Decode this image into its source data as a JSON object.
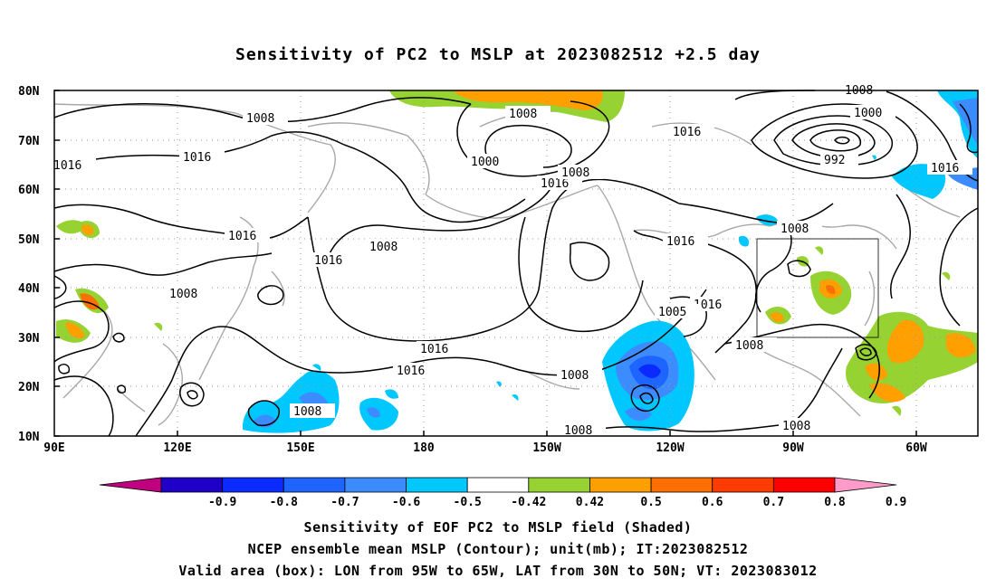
{
  "title": "Sensitivity of PC2 to MSLP at 2023082512 +2.5 day",
  "lat_labels": [
    "80N",
    "70N",
    "60N",
    "50N",
    "40N",
    "30N",
    "20N",
    "10N"
  ],
  "lon_labels": [
    "90E",
    "120E",
    "150E",
    "180",
    "150W",
    "120W",
    "90W",
    "60W"
  ],
  "contour_labels": [
    "1008",
    "1016",
    "1000",
    "992",
    "1008",
    "1016",
    "1016",
    "1000",
    "1008",
    "1016",
    "1016",
    "1016",
    "1008",
    "1008",
    "1016",
    "1016",
    "1016",
    "1005",
    "1016",
    "1008",
    "1016",
    "1008",
    "1008",
    "1008"
  ],
  "colorbar": {
    "colors": [
      "#c0007f",
      "#1e00c8",
      "#0a2aff",
      "#1e64ff",
      "#3c8cff",
      "#00c8ff",
      "#ffffff",
      "#96d232",
      "#ffa000",
      "#ff6e00",
      "#ff3c00",
      "#ff0000",
      "#ff9bc8"
    ],
    "labels": [
      "-0.9",
      "-0.8",
      "-0.7",
      "-0.6",
      "-0.5",
      "-0.42",
      "0.42",
      "0.5",
      "0.6",
      "0.7",
      "0.8",
      "0.9"
    ]
  },
  "captions": {
    "line1": "Sensitivity of EOF PC2 to MSLP field (Shaded)",
    "line2": "NCEP ensemble mean MSLP (Contour); unit(mb); IT:2023082512",
    "line3": "Valid area (box): LON from 95W to 65W, LAT from 30N to 50N; VT: 2023083012"
  }
}
